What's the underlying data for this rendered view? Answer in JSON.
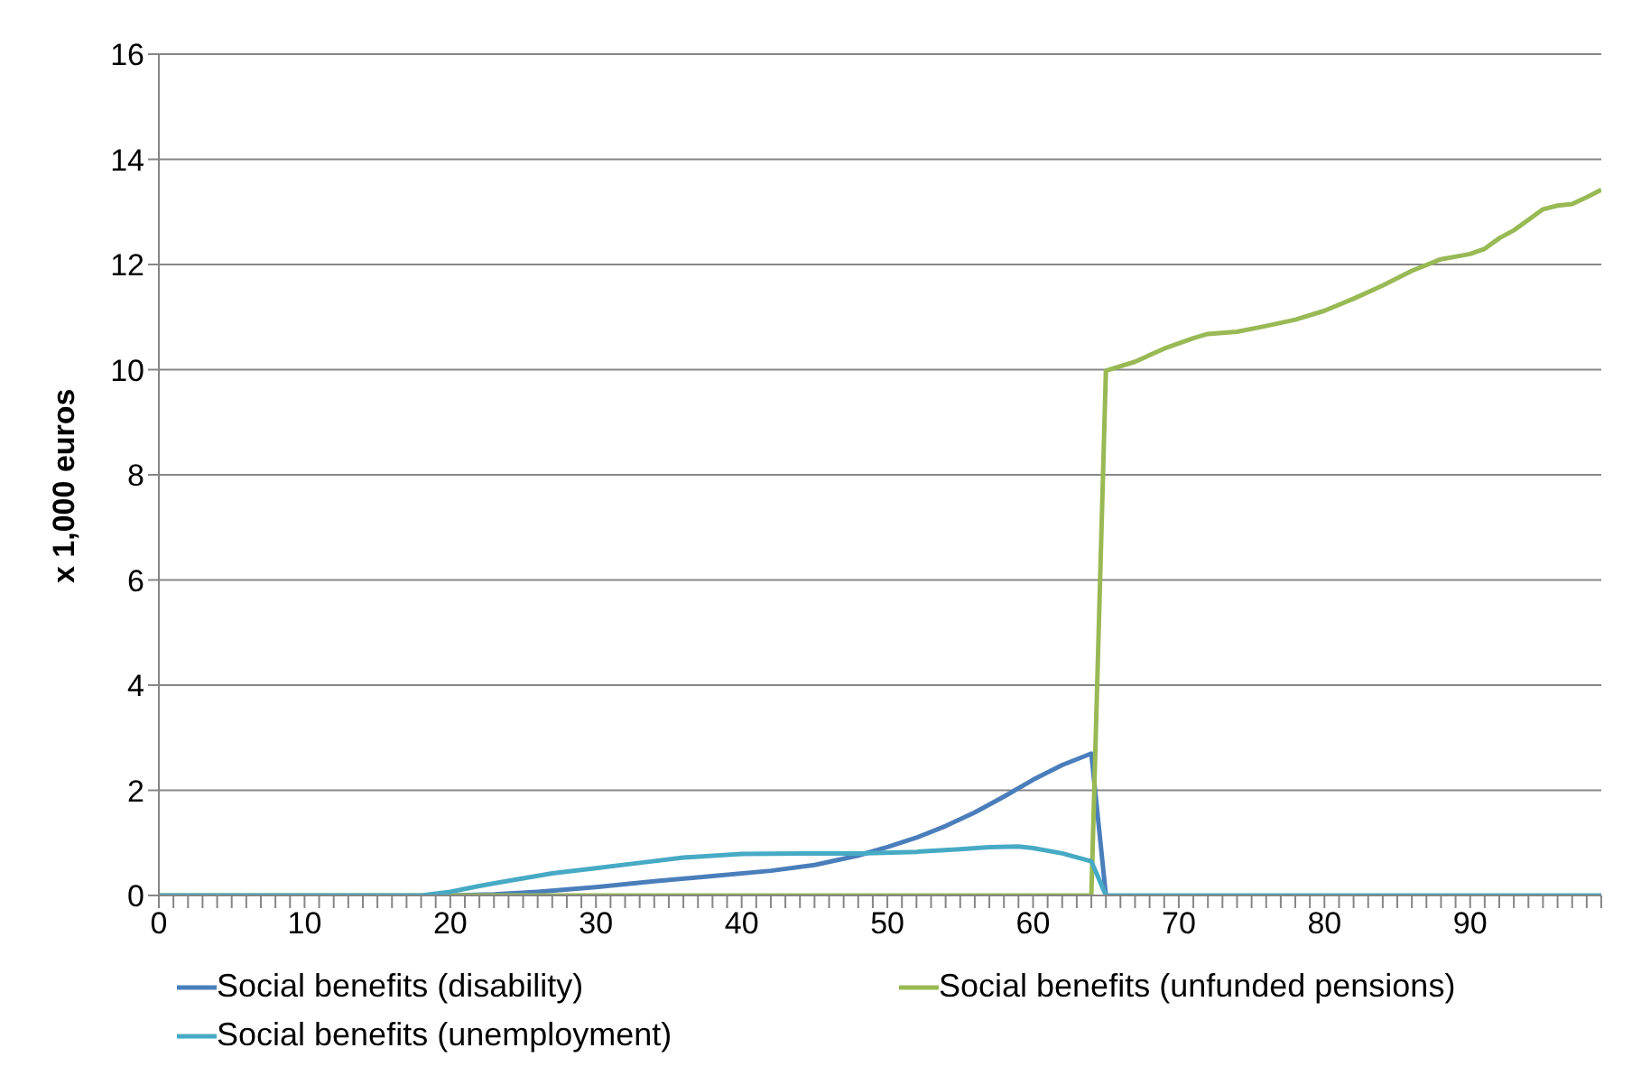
{
  "chart_data": {
    "type": "line",
    "ylabel": "x 1,000 euros",
    "xlim": [
      0,
      99
    ],
    "xticks": [
      0,
      {
        "value": 1,
        "label": null
      },
      {
        "value": 2,
        "label": null
      },
      {
        "value": 3,
        "label": null
      },
      {
        "value": 4,
        "label": null
      },
      {
        "value": 5,
        "label": null
      },
      {
        "value": 6,
        "label": null
      },
      {
        "value": 7,
        "label": null
      },
      {
        "value": 8,
        "label": null
      },
      {
        "value": 9,
        "label": null
      },
      10,
      {
        "value": 11,
        "label": null
      },
      {
        "value": 12,
        "label": null
      },
      {
        "value": 13,
        "label": null
      },
      {
        "value": 14,
        "label": null
      },
      {
        "value": 15,
        "label": null
      },
      {
        "value": 16,
        "label": null
      },
      {
        "value": 17,
        "label": null
      },
      {
        "value": 18,
        "label": null
      },
      {
        "value": 19,
        "label": null
      },
      20,
      {
        "value": 21,
        "label": null
      },
      {
        "value": 22,
        "label": null
      },
      {
        "value": 23,
        "label": null
      },
      {
        "value": 24,
        "label": null
      },
      {
        "value": 25,
        "label": null
      },
      {
        "value": 26,
        "label": null
      },
      {
        "value": 27,
        "label": null
      },
      {
        "value": 28,
        "label": null
      },
      {
        "value": 29,
        "label": null
      },
      30,
      {
        "value": 31,
        "label": null
      },
      {
        "value": 32,
        "label": null
      },
      {
        "value": 33,
        "label": null
      },
      {
        "value": 34,
        "label": null
      },
      {
        "value": 35,
        "label": null
      },
      {
        "value": 36,
        "label": null
      },
      {
        "value": 37,
        "label": null
      },
      {
        "value": 38,
        "label": null
      },
      {
        "value": 39,
        "label": null
      },
      40,
      {
        "value": 41,
        "label": null
      },
      {
        "value": 42,
        "label": null
      },
      {
        "value": 43,
        "label": null
      },
      {
        "value": 44,
        "label": null
      },
      {
        "value": 45,
        "label": null
      },
      {
        "value": 46,
        "label": null
      },
      {
        "value": 47,
        "label": null
      },
      {
        "value": 48,
        "label": null
      },
      {
        "value": 49,
        "label": null
      },
      50,
      {
        "value": 51,
        "label": null
      },
      {
        "value": 52,
        "label": null
      },
      {
        "value": 53,
        "label": null
      },
      {
        "value": 54,
        "label": null
      },
      {
        "value": 55,
        "label": null
      },
      {
        "value": 56,
        "label": null
      },
      {
        "value": 57,
        "label": null
      },
      {
        "value": 58,
        "label": null
      },
      {
        "value": 59,
        "label": null
      },
      60,
      {
        "value": 61,
        "label": null
      },
      {
        "value": 62,
        "label": null
      },
      {
        "value": 63,
        "label": null
      },
      {
        "value": 64,
        "label": null
      },
      {
        "value": 65,
        "label": null
      },
      {
        "value": 66,
        "label": null
      },
      {
        "value": 67,
        "label": null
      },
      {
        "value": 68,
        "label": null
      },
      {
        "value": 69,
        "label": null
      },
      70,
      {
        "value": 71,
        "label": null
      },
      {
        "value": 72,
        "label": null
      },
      {
        "value": 73,
        "label": null
      },
      {
        "value": 74,
        "label": null
      },
      {
        "value": 75,
        "label": null
      },
      {
        "value": 76,
        "label": null
      },
      {
        "value": 77,
        "label": null
      },
      {
        "value": 78,
        "label": null
      },
      {
        "value": 79,
        "label": null
      },
      80,
      {
        "value": 81,
        "label": null
      },
      {
        "value": 82,
        "label": null
      },
      {
        "value": 83,
        "label": null
      },
      {
        "value": 84,
        "label": null
      },
      {
        "value": 85,
        "label": null
      },
      {
        "value": 86,
        "label": null
      },
      {
        "value": 87,
        "label": null
      },
      {
        "value": 88,
        "label": null
      },
      {
        "value": 89,
        "label": null
      },
      90,
      {
        "value": 91,
        "label": null
      },
      {
        "value": 92,
        "label": null
      },
      {
        "value": 93,
        "label": null
      },
      {
        "value": 94,
        "label": null
      },
      {
        "value": 95,
        "label": null
      },
      {
        "value": 96,
        "label": null
      },
      {
        "value": 97,
        "label": null
      },
      {
        "value": 98,
        "label": null
      },
      {
        "value": 99,
        "label": null
      }
    ],
    "ylim": [
      0,
      16
    ],
    "yticks": [
      0,
      2,
      4,
      6,
      8,
      10,
      12,
      14,
      16
    ],
    "grid": "y",
    "legend": "bottom",
    "marker": "none",
    "line_style": "solid",
    "series": [
      {
        "name": "Social benefits (disability)",
        "color": "#4a7ebb",
        "x": [
          20,
          23,
          26,
          30,
          34,
          38,
          42,
          45,
          48,
          50,
          52,
          54,
          56,
          58,
          60,
          62,
          64,
          65
        ],
        "values": [
          0,
          0.02,
          0.07,
          0.16,
          0.27,
          0.37,
          0.47,
          0.58,
          0.76,
          0.92,
          1.1,
          1.32,
          1.58,
          1.88,
          2.2,
          2.48,
          2.7,
          0
        ]
      },
      {
        "name": "Social benefits (unfunded pensions)",
        "color": "#98b954",
        "x": [
          0,
          64,
          65,
          67,
          69,
          71,
          72,
          74,
          76,
          78,
          80,
          82,
          84,
          86,
          88,
          90,
          91,
          92,
          93,
          94,
          95,
          96,
          97,
          98,
          99
        ],
        "values": [
          0,
          0,
          9.98,
          10.15,
          10.4,
          10.6,
          10.68,
          10.72,
          10.83,
          10.95,
          11.12,
          11.35,
          11.6,
          11.88,
          12.1,
          12.2,
          12.3,
          12.5,
          12.65,
          12.85,
          13.05,
          13.12,
          13.15,
          13.28,
          13.42
        ]
      },
      {
        "name": "Social benefits (unemployment)",
        "color": "#46aac5",
        "x": [
          0,
          18,
          20,
          22,
          24,
          27,
          30,
          33,
          36,
          40,
          44,
          48,
          52,
          55,
          57,
          59,
          60,
          62,
          64,
          65,
          99
        ],
        "values": [
          0,
          0,
          0.07,
          0.18,
          0.28,
          0.42,
          0.52,
          0.62,
          0.72,
          0.79,
          0.8,
          0.8,
          0.83,
          0.88,
          0.92,
          0.93,
          0.9,
          0.8,
          0.65,
          0,
          0
        ]
      }
    ]
  }
}
